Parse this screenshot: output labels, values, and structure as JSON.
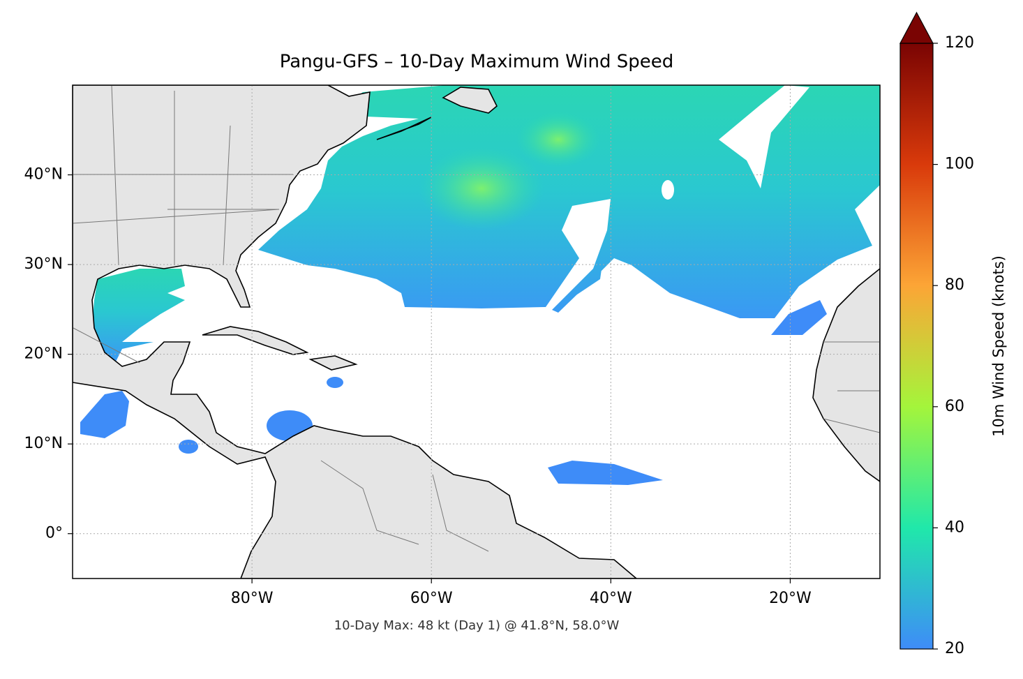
{
  "chart_data": {
    "type": "map",
    "title": "Pangu-GFS – 10-Day Maximum Wind Speed",
    "annotation": "10-Day Max: 48 kt (Day 1) @ 41.8°N, 58.0°W",
    "xlim": [
      -100,
      -10
    ],
    "ylim": [
      -5,
      50
    ],
    "xticks": [
      {
        "value": -80,
        "label": "80°W"
      },
      {
        "value": -60,
        "label": "60°W"
      },
      {
        "value": -40,
        "label": "40°W"
      },
      {
        "value": -20,
        "label": "20°W"
      }
    ],
    "yticks": [
      {
        "value": 0,
        "label": "0°"
      },
      {
        "value": 10,
        "label": "10°N"
      },
      {
        "value": 20,
        "label": "20°N"
      },
      {
        "value": 30,
        "label": "30°N"
      },
      {
        "value": 40,
        "label": "40°N"
      }
    ],
    "grid": true,
    "colorbar": {
      "label": "10m Wind Speed (knots)",
      "lim": [
        20,
        120
      ],
      "ticks": [
        20,
        40,
        60,
        80,
        100,
        120
      ],
      "extend": "max",
      "colormap": [
        "#3e8cf8",
        "#20e8aa",
        "#a4f53b",
        "#fca536",
        "#d93a0b",
        "#7a0403"
      ]
    }
  }
}
